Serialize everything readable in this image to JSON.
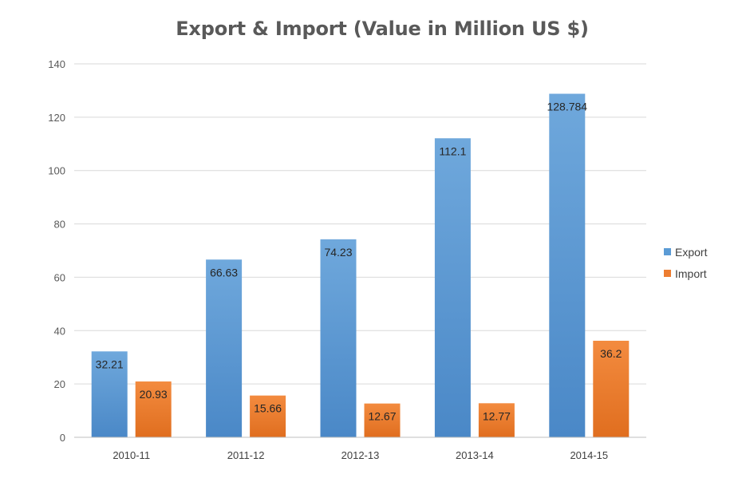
{
  "chart_data": {
    "type": "bar",
    "title": "Export & Import (Value in Million US $)",
    "xlabel": "",
    "ylabel": "",
    "categories": [
      "2010-11",
      "2011-12",
      "2012-13",
      "2013-14",
      "2014-15"
    ],
    "series": [
      {
        "name": "Export",
        "values": [
          32.21,
          66.63,
          74.23,
          112.1,
          128.784
        ],
        "labels": [
          "32.21",
          "66.63",
          "74.23",
          "112.1",
          "128.784"
        ],
        "color": "#5b9bd5",
        "color_top": "#6fa8dc",
        "color_bottom": "#4a88c7"
      },
      {
        "name": "Import",
        "values": [
          20.93,
          15.66,
          12.67,
          12.77,
          36.2
        ],
        "labels": [
          "20.93",
          "15.66",
          "12.67",
          "12.77",
          "36.2"
        ],
        "color": "#ed7d31",
        "color_top": "#f38b3f",
        "color_bottom": "#e06e1f"
      }
    ],
    "ylim": [
      0,
      140
    ],
    "yticks": [
      "0",
      "20",
      "40",
      "60",
      "80",
      "100",
      "120",
      "140"
    ],
    "grid": true,
    "legend_position": "right"
  }
}
